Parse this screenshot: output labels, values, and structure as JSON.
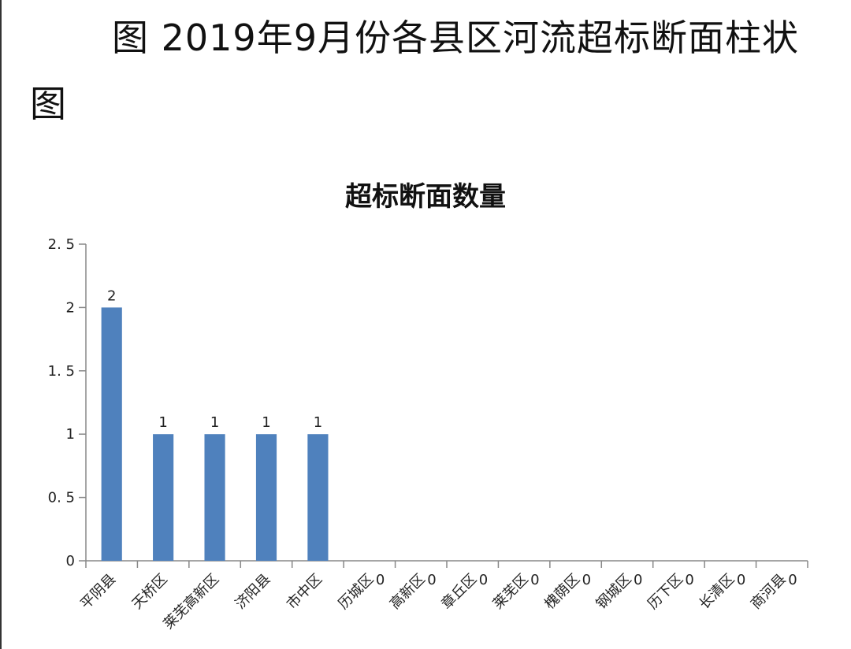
{
  "document": {
    "caption": "图 2019年9月份各县区河流超标断面柱状图"
  },
  "chart_data": {
    "type": "bar",
    "title": "超标断面数量",
    "xlabel": "",
    "ylabel": "",
    "ylim": [
      0,
      2.5
    ],
    "yticks": [
      "0",
      "0. 5",
      "1",
      "1. 5",
      "2",
      "2. 5"
    ],
    "ytick_values": [
      0,
      0.5,
      1,
      1.5,
      2,
      2.5
    ],
    "categories": [
      "平阴县",
      "天桥区",
      "莱芜高新区",
      "济阳县",
      "市中区",
      "历城区",
      "高新区",
      "章丘区",
      "莱芜区",
      "槐荫区",
      "钢城区",
      "历下区",
      "长清区",
      "商河县"
    ],
    "values": [
      2,
      1,
      1,
      1,
      1,
      0,
      0,
      0,
      0,
      0,
      0,
      0,
      0,
      0
    ],
    "data_labels": [
      "2",
      "1",
      "1",
      "1",
      "1",
      "0",
      "0",
      "0",
      "0",
      "0",
      "0",
      "0",
      "0",
      "0"
    ],
    "bar_color": "#4f81bd",
    "grid": false,
    "legend": "none"
  }
}
